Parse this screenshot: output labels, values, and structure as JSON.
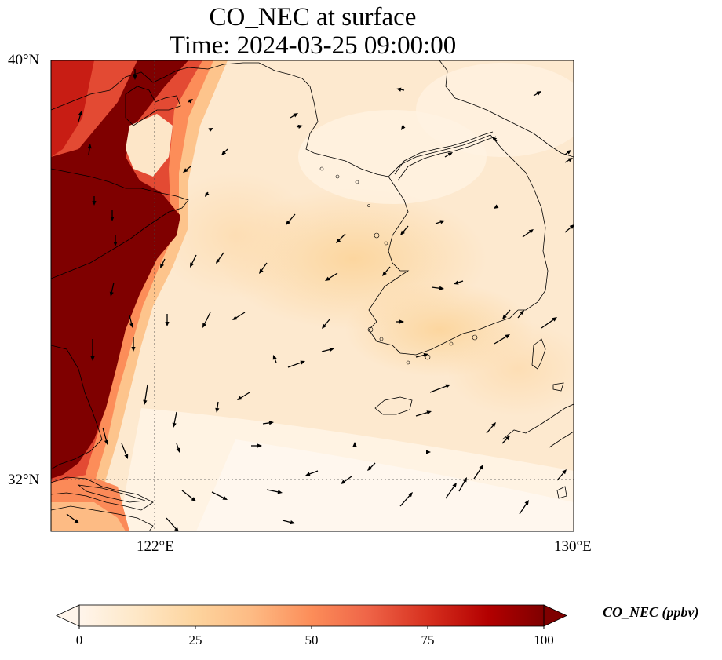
{
  "title": {
    "line1": "CO_NEC at surface",
    "line2": "Time: 2024-03-25 09:00:00"
  },
  "map": {
    "lat_labels": [
      "40°N",
      "32°N"
    ],
    "lon_labels": [
      "122°E",
      "130°E"
    ],
    "colors": {
      "low": "#fff5eb",
      "mid": "#fdd49e",
      "high": "#d7301f",
      "max": "#7f0000"
    }
  },
  "colorbar": {
    "label": "CO_NEC (ppbv)",
    "ticks": [
      "0",
      "25",
      "50",
      "75",
      "100"
    ],
    "colormap": [
      "#fff5eb",
      "#fee8c8",
      "#fdd49e",
      "#fdbb84",
      "#fc8d59",
      "#ef6548",
      "#d7301f",
      "#b30000",
      "#7f0000"
    ]
  }
}
